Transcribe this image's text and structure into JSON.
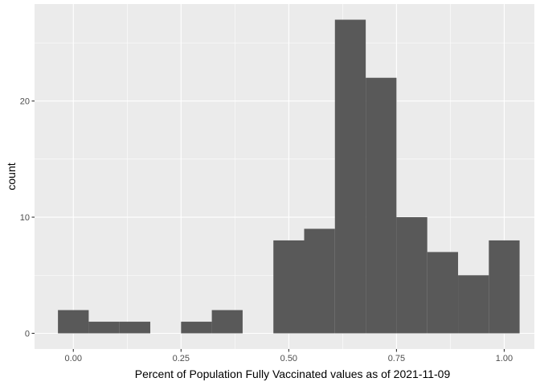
{
  "chart_data": {
    "type": "bar",
    "subtype": "histogram",
    "title": "",
    "xlabel": "Percent of Population Fully Vaccinated values as of 2021-11-09",
    "ylabel": "count",
    "xlim": [
      -0.09,
      1.07
    ],
    "ylim": [
      -1.35,
      28.35
    ],
    "x_ticks": [
      0.0,
      0.25,
      0.5,
      0.75,
      1.0
    ],
    "x_tick_labels": [
      "0.00",
      "0.25",
      "0.50",
      "0.75",
      "1.00"
    ],
    "y_ticks": [
      0,
      10,
      20
    ],
    "y_tick_labels": [
      "0",
      "10",
      "20"
    ],
    "bin_width": 0.0714,
    "bins": [
      {
        "x0": -0.0357,
        "x1": 0.0357,
        "count": 2
      },
      {
        "x0": 0.0357,
        "x1": 0.1071,
        "count": 1
      },
      {
        "x0": 0.1071,
        "x1": 0.1786,
        "count": 1
      },
      {
        "x0": 0.1786,
        "x1": 0.25,
        "count": 0
      },
      {
        "x0": 0.25,
        "x1": 0.3214,
        "count": 1
      },
      {
        "x0": 0.3214,
        "x1": 0.3929,
        "count": 2
      },
      {
        "x0": 0.3929,
        "x1": 0.4643,
        "count": 0
      },
      {
        "x0": 0.4643,
        "x1": 0.5357,
        "count": 8
      },
      {
        "x0": 0.5357,
        "x1": 0.6071,
        "count": 9
      },
      {
        "x0": 0.6071,
        "x1": 0.6786,
        "count": 27
      },
      {
        "x0": 0.6786,
        "x1": 0.75,
        "count": 22
      },
      {
        "x0": 0.75,
        "x1": 0.8214,
        "count": 10
      },
      {
        "x0": 0.8214,
        "x1": 0.8929,
        "count": 7
      },
      {
        "x0": 0.8929,
        "x1": 0.9643,
        "count": 5
      },
      {
        "x0": 0.9643,
        "x1": 1.0357,
        "count": 8
      }
    ],
    "grid": true,
    "legend": "none",
    "colors": {
      "panel_background": "#ebebeb",
      "grid_major": "#ffffff",
      "bar_fill": "#595959",
      "text": "#4d4d4d",
      "title_text": "#000000"
    }
  }
}
